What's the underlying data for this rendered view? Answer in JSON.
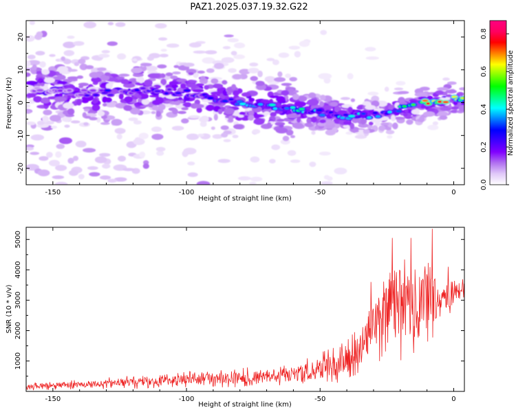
{
  "title": "PAZ1.2025.037.19.32.G22",
  "chart_data": [
    {
      "type": "heatmap",
      "xlabel": "Height of straight line (km)",
      "ylabel": "Frequency (Hz)",
      "xlim": [
        -160,
        4
      ],
      "ylim": [
        -25,
        25
      ],
      "xticks": [
        -150,
        -100,
        -50,
        0
      ],
      "yticks": [
        -20,
        -10,
        0,
        10,
        20
      ],
      "colorbar": {
        "label": "Normalized spectral amplitude",
        "range": [
          0.0,
          0.87
        ],
        "ticks": [
          0.0,
          0.2,
          0.4,
          0.6,
          0.8
        ],
        "colormap": [
          "#ffffff",
          "#e0c8f8",
          "#b070f0",
          "#8000ff",
          "#4000ff",
          "#0000ff",
          "#0080ff",
          "#00ffff",
          "#00ff80",
          "#00ff00",
          "#80ff00",
          "#ffff00",
          "#ff8000",
          "#ff0000",
          "#ff0060",
          "#ff0080"
        ]
      },
      "ridge": {
        "description_points": [
          [
            -155,
            4
          ],
          [
            -140,
            3
          ],
          [
            -130,
            3
          ],
          [
            -115,
            4
          ],
          [
            -100,
            3
          ],
          [
            -90,
            1
          ],
          [
            -80,
            0
          ],
          [
            -70,
            -1
          ],
          [
            -60,
            -2
          ],
          [
            -50,
            -3
          ],
          [
            -40,
            -4
          ],
          [
            -30,
            -4
          ],
          [
            -20,
            -2
          ],
          [
            -10,
            0
          ],
          [
            0,
            1
          ]
        ],
        "peak_values": [
          [
            -155,
            0.15
          ],
          [
            -130,
            0.3
          ],
          [
            -100,
            0.3
          ],
          [
            -75,
            0.45
          ],
          [
            -60,
            0.5
          ],
          [
            -45,
            0.45
          ],
          [
            -25,
            0.4
          ],
          [
            -15,
            0.65
          ],
          [
            -8,
            0.87
          ],
          [
            0,
            0.8
          ]
        ]
      }
    },
    {
      "type": "line",
      "xlabel": "Height of straight line (km)",
      "ylabel": "SNR (10 * v/v)",
      "xlim": [
        -160,
        4
      ],
      "ylim": [
        0,
        5400
      ],
      "xticks": [
        -150,
        -100,
        -50,
        0
      ],
      "yticks": [
        1000,
        2000,
        3000,
        4000,
        5000
      ],
      "color": "#ee2222",
      "envelope": {
        "x": [
          -160,
          -140,
          -120,
          -100,
          -80,
          -60,
          -50,
          -40,
          -35,
          -30,
          -25,
          -20,
          -15,
          -10,
          -5,
          0,
          4
        ],
        "mean": [
          150,
          220,
          300,
          380,
          450,
          550,
          750,
          1000,
          1400,
          2200,
          2800,
          3000,
          2900,
          3000,
          3000,
          3200,
          3400
        ],
        "amp": [
          100,
          130,
          180,
          220,
          250,
          320,
          450,
          550,
          700,
          1100,
          1500,
          1600,
          1500,
          1300,
          700,
          400,
          300
        ]
      },
      "peaks": [
        [
          -23,
          5050
        ],
        [
          -16,
          5050
        ],
        [
          -8,
          5350
        ],
        [
          -2,
          4100
        ],
        [
          -31,
          3600
        ]
      ]
    }
  ]
}
